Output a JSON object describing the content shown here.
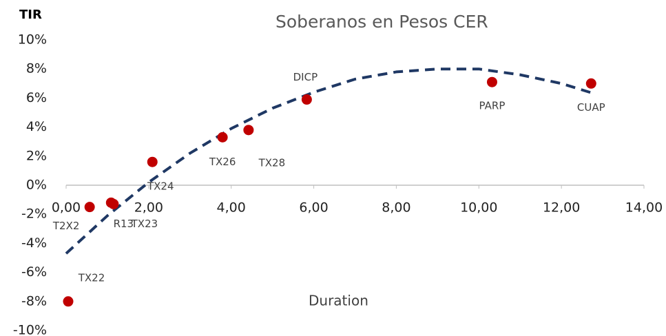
{
  "chart_data": {
    "type": "scatter",
    "title": "Soberanos en Pesos CER",
    "y_label": "TIR",
    "x_label": "Duration",
    "xlim": [
      0,
      14
    ],
    "xticks": [
      {
        "value": 0,
        "label": "0,00"
      },
      {
        "value": 2,
        "label": "2,00"
      },
      {
        "value": 4,
        "label": "4,00"
      },
      {
        "value": 6,
        "label": "6,00"
      },
      {
        "value": 8,
        "label": "8,00"
      },
      {
        "value": 10,
        "label": "10,00"
      },
      {
        "value": 12,
        "label": "12,00"
      },
      {
        "value": 14,
        "label": "14,00"
      }
    ],
    "ylim": [
      -10,
      10
    ],
    "yticks": [
      {
        "value": 10,
        "label": "10%"
      },
      {
        "value": 8,
        "label": "8%"
      },
      {
        "value": 6,
        "label": "6%"
      },
      {
        "value": 4,
        "label": "4%"
      },
      {
        "value": 2,
        "label": "2%"
      },
      {
        "value": 0,
        "label": "0%"
      },
      {
        "value": -2,
        "label": "-2%"
      },
      {
        "value": -4,
        "label": "-4%"
      },
      {
        "value": -6,
        "label": "-6%"
      },
      {
        "value": -8,
        "label": "-8%"
      },
      {
        "value": -10,
        "label": "-10%"
      }
    ],
    "grid": false,
    "series": [
      {
        "color": "#c00000",
        "labels": [
          "TX22",
          "T2X2",
          "R13",
          "TX23",
          "TX24",
          "TX26",
          "TX28",
          "DICP",
          "PARP",
          "CUAP"
        ],
        "x": [
          0.05,
          0.57,
          1.09,
          1.15,
          2.09,
          3.79,
          4.42,
          5.83,
          10.32,
          12.72
        ],
        "values": [
          -8.0,
          -1.5,
          -1.2,
          -1.3,
          1.6,
          3.3,
          3.8,
          5.9,
          7.1,
          7.0
        ]
      },
      {
        "color": "#1f3864",
        "style": "dashed",
        "x": [
          0,
          1,
          2,
          3,
          4,
          5,
          6,
          7,
          8,
          9,
          10,
          11,
          12,
          12.8
        ],
        "values": [
          -4.7,
          -2.1,
          0.2,
          2.2,
          3.9,
          5.3,
          6.4,
          7.3,
          7.8,
          8.0,
          8.0,
          7.6,
          7.0,
          6.3
        ]
      }
    ]
  }
}
